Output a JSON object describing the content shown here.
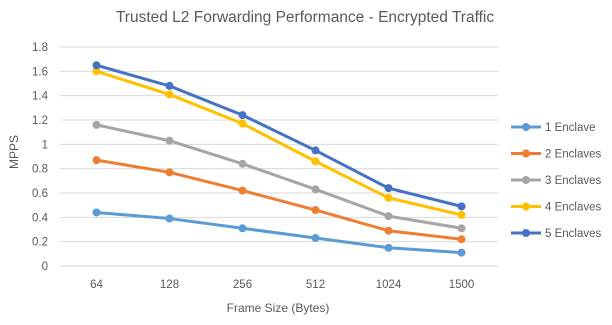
{
  "chart_data": {
    "type": "line",
    "title": "Trusted L2 Forwarding Performance - Encrypted Traffic",
    "xlabel": "Frame Size (Bytes)",
    "ylabel": "MPPS",
    "categories": [
      "64",
      "128",
      "256",
      "512",
      "1024",
      "1500"
    ],
    "ylim": [
      0,
      1.8
    ],
    "yticks": [
      "0",
      "0.2",
      "0.4",
      "0.6",
      "0.8",
      "1",
      "1.2",
      "1.4",
      "1.6",
      "1.8"
    ],
    "grid": true,
    "legend_position": "right",
    "series": [
      {
        "name": "1 Enclave",
        "color": "#5B9BD5",
        "values": [
          0.44,
          0.39,
          0.31,
          0.23,
          0.15,
          0.11
        ]
      },
      {
        "name": "2 Enclaves",
        "color": "#ED7D31",
        "values": [
          0.87,
          0.77,
          0.62,
          0.46,
          0.29,
          0.22
        ]
      },
      {
        "name": "3 Enclaves",
        "color": "#A5A5A5",
        "values": [
          1.16,
          1.03,
          0.84,
          0.63,
          0.41,
          0.31
        ]
      },
      {
        "name": "4 Enclaves",
        "color": "#FFC000",
        "values": [
          1.6,
          1.41,
          1.17,
          0.86,
          0.56,
          0.42
        ]
      },
      {
        "name": "5 Enclaves",
        "color": "#4472C4",
        "values": [
          1.65,
          1.48,
          1.24,
          0.95,
          0.64,
          0.49
        ]
      }
    ]
  }
}
